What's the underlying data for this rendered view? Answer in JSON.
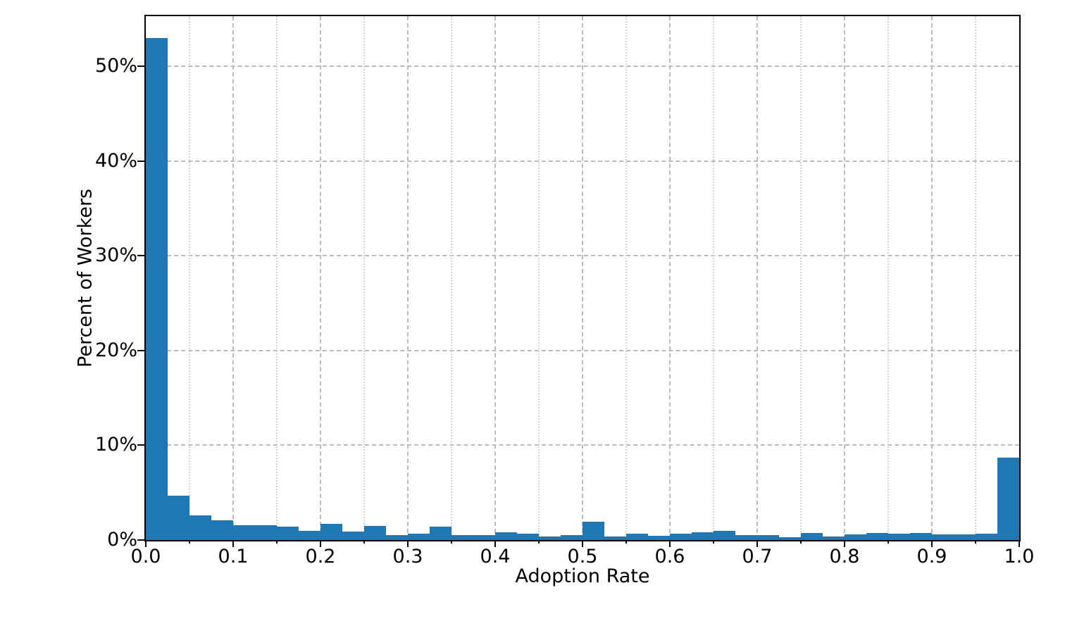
{
  "chart_data": {
    "type": "bar",
    "subtype": "histogram",
    "title": "",
    "xlabel": "Adoption Rate",
    "ylabel": "Percent of Workers",
    "xlim": [
      0.0,
      1.0
    ],
    "ylim": [
      0.0,
      55.3
    ],
    "bin_width": 0.025,
    "bin_starts": [
      0.0,
      0.025,
      0.05,
      0.075,
      0.1,
      0.125,
      0.15,
      0.175,
      0.2,
      0.225,
      0.25,
      0.275,
      0.3,
      0.325,
      0.35,
      0.375,
      0.4,
      0.425,
      0.45,
      0.475,
      0.5,
      0.525,
      0.55,
      0.575,
      0.6,
      0.625,
      0.65,
      0.675,
      0.7,
      0.725,
      0.75,
      0.775,
      0.8,
      0.825,
      0.85,
      0.875,
      0.9,
      0.925,
      0.95,
      0.975
    ],
    "values_percent": [
      53.0,
      4.7,
      2.6,
      2.1,
      1.6,
      1.6,
      1.4,
      1.0,
      1.7,
      0.9,
      1.5,
      0.55,
      0.7,
      1.4,
      0.55,
      0.5,
      0.8,
      0.65,
      0.35,
      0.55,
      1.9,
      0.4,
      0.65,
      0.45,
      0.65,
      0.8,
      1.0,
      0.5,
      0.55,
      0.3,
      0.75,
      0.4,
      0.6,
      0.75,
      0.65,
      0.75,
      0.6,
      0.6,
      0.65,
      8.7
    ],
    "xticks": [
      0.0,
      0.1,
      0.2,
      0.3,
      0.4,
      0.5,
      0.6,
      0.7,
      0.8,
      0.9,
      1.0
    ],
    "xtick_labels": [
      "0.0",
      "0.1",
      "0.2",
      "0.3",
      "0.4",
      "0.5",
      "0.6",
      "0.7",
      "0.8",
      "0.9",
      "1.0"
    ],
    "x_minor_ticks": [
      0.05,
      0.15,
      0.25,
      0.35,
      0.45,
      0.55,
      0.65,
      0.75,
      0.85,
      0.95
    ],
    "yticks": [
      0,
      10,
      20,
      30,
      40,
      50
    ],
    "ytick_labels": [
      "0%",
      "10%",
      "20%",
      "30%",
      "40%",
      "50%"
    ],
    "grid": {
      "major_horizontal": "dashed",
      "major_vertical": "dashed",
      "minor_vertical": "dotted",
      "legend_position": "none"
    },
    "colors": {
      "bar": "#1f77b4",
      "grid_major": "#bbbbbb",
      "grid_minor": "#d2d2d2",
      "spine": "#000000",
      "text": "#000000",
      "background": "#ffffff"
    }
  }
}
